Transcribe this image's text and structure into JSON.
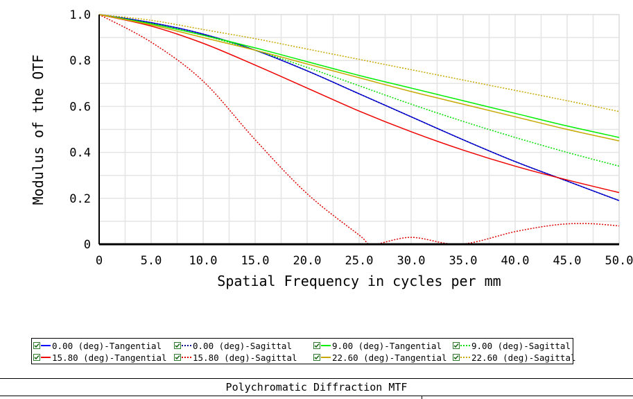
{
  "chart_data": {
    "type": "line",
    "title": "Polychromatic Diffraction MTF",
    "xlabel": "Spatial Frequency in cycles per mm",
    "ylabel": "Modulus of the OTF",
    "xlim": [
      0,
      50
    ],
    "ylim": [
      0,
      1
    ],
    "xticks": [
      "0",
      "5.0",
      "10.0",
      "15.0",
      "20.0",
      "25.0",
      "30.0",
      "35.0",
      "40.0",
      "45.0",
      "50.0"
    ],
    "yticks": [
      "0",
      "0.2",
      "0.4",
      "0.6",
      "0.8",
      "1.0"
    ],
    "grid": true,
    "legend_position": "bottom",
    "x": [
      0,
      5,
      10,
      15,
      20,
      25,
      30,
      35,
      40,
      45,
      50
    ],
    "series": [
      {
        "name": "0.00 (deg)-Tangential",
        "color": "#0000ff",
        "dash": "solid",
        "values": [
          1.0,
          0.965,
          0.915,
          0.845,
          0.755,
          0.655,
          0.555,
          0.455,
          0.36,
          0.275,
          0.19
        ]
      },
      {
        "name": "0.00 (deg)-Sagittal",
        "color": "#00008b",
        "dash": "dotted",
        "values": [
          1.0,
          0.965,
          0.915,
          0.845,
          0.755,
          0.655,
          0.555,
          0.455,
          0.36,
          0.275,
          0.19
        ]
      },
      {
        "name": "9.00 (deg)-Tangential",
        "color": "#00ee00",
        "dash": "solid",
        "values": [
          1.0,
          0.96,
          0.91,
          0.855,
          0.795,
          0.735,
          0.68,
          0.625,
          0.57,
          0.515,
          0.465
        ]
      },
      {
        "name": "9.00 (deg)-Sagittal",
        "color": "#00dd00",
        "dash": "dotted",
        "values": [
          1.0,
          0.96,
          0.91,
          0.845,
          0.77,
          0.69,
          0.61,
          0.535,
          0.465,
          0.4,
          0.34
        ]
      },
      {
        "name": "15.80 (deg)-Tangential",
        "color": "#ee0000",
        "dash": "solid",
        "values": [
          1.0,
          0.95,
          0.875,
          0.78,
          0.68,
          0.58,
          0.49,
          0.41,
          0.34,
          0.28,
          0.225
        ]
      },
      {
        "name": "15.80 (deg)-Sagittal",
        "color": "#dd0000",
        "dash": "dotted",
        "values": [
          1.0,
          0.88,
          0.71,
          0.455,
          0.22,
          0.04,
          0.0,
          0.03,
          0.0,
          0.055,
          0.085,
          0.09,
          0.08
        ],
        "x": [
          0,
          5,
          10,
          15,
          20,
          25,
          26.3,
          30,
          34.7,
          40,
          44,
          47,
          50
        ]
      },
      {
        "name": "22.60 (deg)-Tangential",
        "color": "#c8a800",
        "dash": "solid",
        "values": [
          1.0,
          0.955,
          0.9,
          0.845,
          0.785,
          0.725,
          0.665,
          0.61,
          0.555,
          0.5,
          0.45
        ]
      },
      {
        "name": "22.60 (deg)-Sagittal",
        "color": "#c8a800",
        "dash": "dotted",
        "values": [
          1.0,
          0.975,
          0.935,
          0.895,
          0.85,
          0.805,
          0.76,
          0.715,
          0.67,
          0.625,
          0.578
        ]
      }
    ]
  }
}
